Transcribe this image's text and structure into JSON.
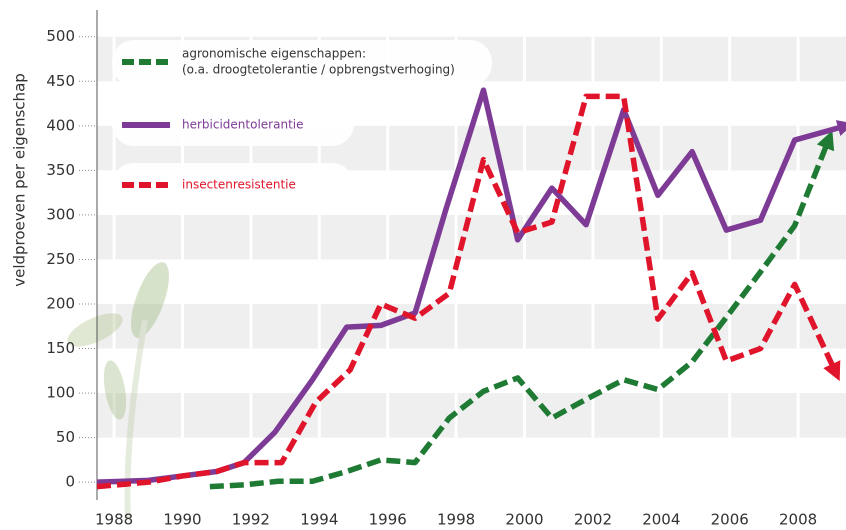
{
  "chart_data": {
    "type": "line",
    "y_label": "veldproeven per eigenschap",
    "xlim": [
      1987.5,
      2009.4
    ],
    "xticks": [
      1988,
      1990,
      1992,
      1994,
      1996,
      1998,
      2000,
      2002,
      2004,
      2006,
      2008
    ],
    "ylim": [
      -20,
      530
    ],
    "yticks": [
      0,
      50,
      100,
      150,
      200,
      250,
      300,
      350,
      400,
      450,
      500
    ],
    "legend": "top-left",
    "series": [
      {
        "name": [
          "agronomische eigenschappen:",
          "(o.a. droogtetolerantie / opbrengstverhoging)"
        ],
        "color": "#1f7a34",
        "dashed": true,
        "arrow": true,
        "x": [
          1990.8,
          1991.8,
          1992.8,
          1993.8,
          1994.8,
          1995.8,
          1996.8,
          1997.8,
          1998.8,
          1999.8,
          2000.8,
          2001.8,
          2002.9,
          2003.9,
          2004.9,
          2005.9,
          2006.9,
          2007.9,
          2008.9
        ],
        "values": [
          -5,
          -3,
          1,
          1,
          12,
          25,
          22,
          72,
          102,
          117,
          72,
          93,
          115,
          104,
          135,
          185,
          236,
          288,
          385
        ]
      },
      {
        "name": [
          "herbicidentolerantie"
        ],
        "color": "#7d3b96",
        "dashed": false,
        "arrow": true,
        "x": [
          1987.5,
          1989,
          1990,
          1991,
          1991.8,
          1992.7,
          1993.8,
          1994.8,
          1995.8,
          1996.8,
          1997.7,
          1998.8,
          1999.8,
          2000.8,
          2001.8,
          2002.9,
          2003.9,
          2004.9,
          2005.9,
          2006.9,
          2007.9,
          2009.4
        ],
        "values": [
          0,
          2,
          7,
          12,
          22,
          56,
          115,
          174,
          176,
          190,
          306,
          440,
          272,
          330,
          289,
          418,
          322,
          371,
          283,
          294,
          384,
          400
        ]
      },
      {
        "name": [
          "insectenresistentie"
        ],
        "color": "#e0142a",
        "dashed": true,
        "arrow": true,
        "x": [
          1987.5,
          1989,
          1990,
          1991,
          1991.8,
          1992.9,
          1993.9,
          1994.9,
          1995.8,
          1996.8,
          1997.8,
          1998.8,
          1999.8,
          2000.8,
          2001.8,
          2002.9,
          2003.9,
          2004.9,
          2005.9,
          2006.9,
          2007.9,
          2009.1
        ],
        "values": [
          -5,
          0,
          7,
          12,
          22,
          22,
          90,
          126,
          200,
          184,
          212,
          362,
          280,
          292,
          433,
          433,
          183,
          235,
          136,
          150,
          222,
          123
        ]
      }
    ]
  }
}
